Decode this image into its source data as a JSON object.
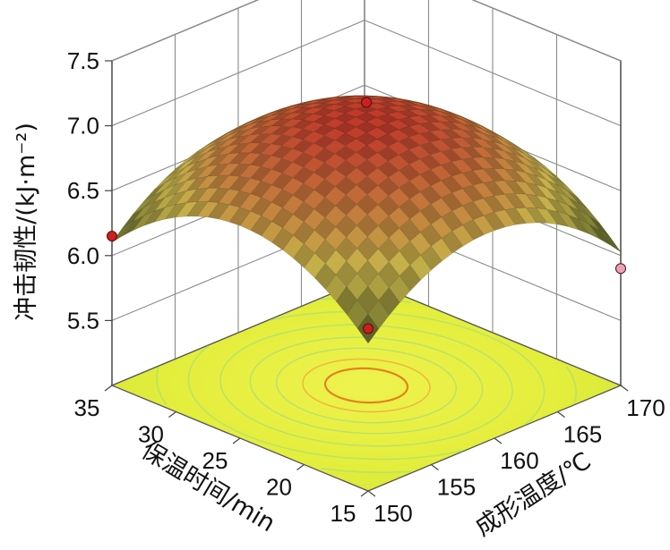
{
  "chart_data": {
    "type": "surface3d",
    "zlabel": "冲击韧性/(kJ·m⁻²)",
    "xlabel": "成形温度/℃",
    "ylabel": "保温时间/min",
    "z_ticks": [
      "5.5",
      "6.0",
      "6.5",
      "7.0",
      "7.5"
    ],
    "x_ticks": [
      "150",
      "155",
      "160",
      "165",
      "170"
    ],
    "y_ticks": [
      "15",
      "20",
      "25",
      "30",
      "35"
    ],
    "xlim": [
      150,
      170
    ],
    "ylim": [
      15,
      35
    ],
    "zlim": [
      5.0,
      7.5
    ],
    "surface": {
      "peak": {
        "temperature": 160,
        "time": 25,
        "toughness": 7.1
      },
      "corners": [
        {
          "temperature": 150,
          "time": 15,
          "toughness": 6.27
        },
        {
          "temperature": 170,
          "time": 15,
          "toughness": 5.96
        },
        {
          "temperature": 150,
          "time": 35,
          "toughness": 6.17
        },
        {
          "temperature": 170,
          "time": 35,
          "toughness": 5.86
        }
      ]
    },
    "design_points": [
      {
        "temperature": 150,
        "time": 35,
        "toughness": 6.15,
        "color": "#cc1f1f"
      },
      {
        "temperature": 150,
        "time": 15,
        "toughness": 6.25,
        "color": "#cc1f1f"
      },
      {
        "temperature": 160,
        "time": 25,
        "toughness": 7.18,
        "color": "#cc1f1f"
      },
      {
        "temperature": 170,
        "time": 15,
        "toughness": 5.9,
        "color": "#e8a2b8"
      }
    ],
    "colors": {
      "floor": "#e3ee3a",
      "contour_inner": "#e37b18",
      "contour_outer": "#b7e06a",
      "surface_high": "#c0392b",
      "surface_mid": "#c6b24a",
      "surface_low": "#1d3a14"
    }
  }
}
